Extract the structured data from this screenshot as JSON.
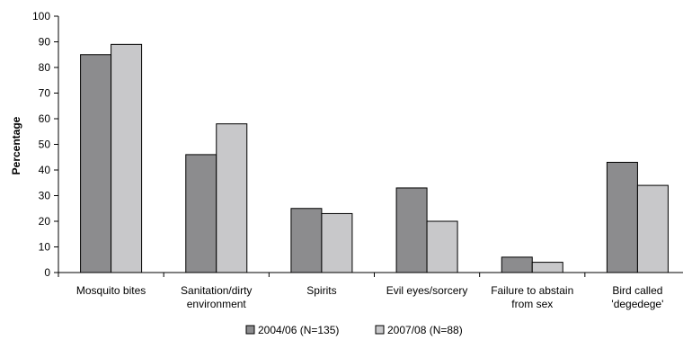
{
  "chart_data": {
    "type": "bar",
    "title": "",
    "xlabel": "",
    "ylabel": "Percentage",
    "ylim": [
      0,
      100
    ],
    "yticks": [
      0,
      10,
      20,
      30,
      40,
      50,
      60,
      70,
      80,
      90,
      100
    ],
    "categories": [
      [
        "Mosquito bites"
      ],
      [
        "Sanitation/dirty",
        "environment"
      ],
      [
        "Spirits"
      ],
      [
        "Evil eyes/sorcery"
      ],
      [
        "Failure to abstain",
        "from sex"
      ],
      [
        "Bird called",
        "'degedege'"
      ]
    ],
    "series": [
      {
        "name": "2004/06 (N=135)",
        "color": "#8c8c8e",
        "values": [
          85,
          46,
          25,
          33,
          6,
          43
        ]
      },
      {
        "name": "2007/08 (N=88)",
        "color": "#c8c8ca",
        "values": [
          89,
          58,
          23,
          20,
          4,
          34
        ]
      }
    ],
    "grid": false,
    "legend_position": "bottom"
  }
}
